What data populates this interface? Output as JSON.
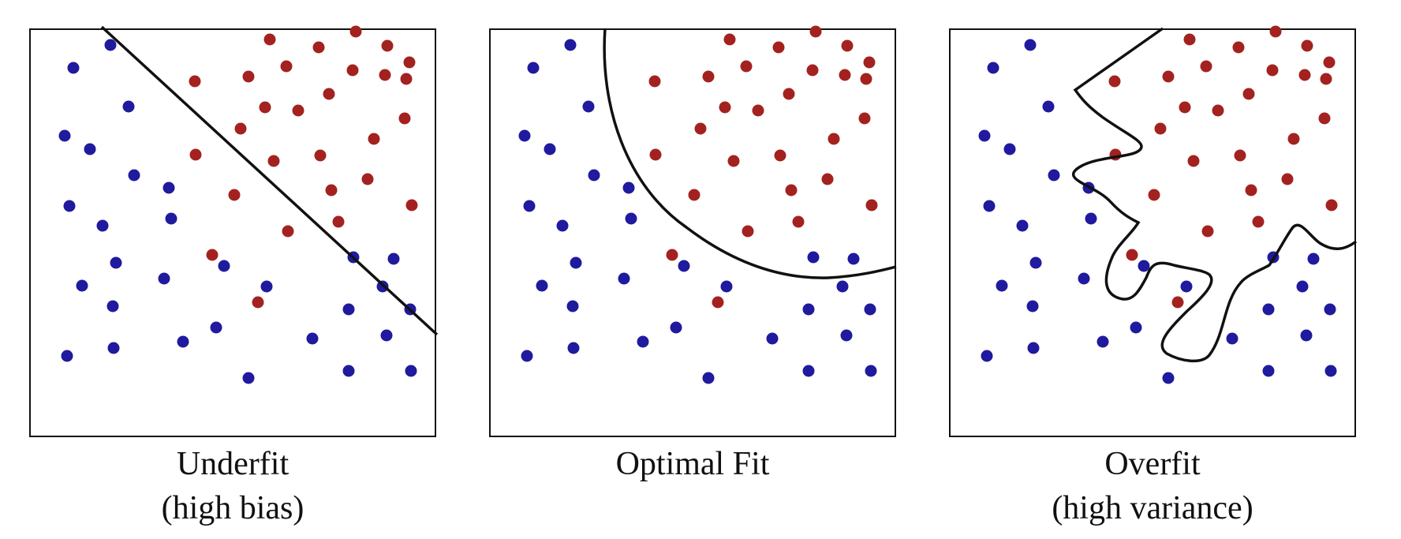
{
  "colors": {
    "class_a": "#1f1a9e",
    "class_b": "#a3221f",
    "boundary": "#111111",
    "frame": "#111111"
  },
  "panels": [
    {
      "name": "underfit",
      "caption_line1": "Underfit",
      "caption_line2": "(high bias)"
    },
    {
      "name": "optimal",
      "caption_line1": "Optimal Fit",
      "caption_line2": ""
    },
    {
      "name": "overfit",
      "caption_line1": "Overfit",
      "caption_line2": "(high variance)"
    }
  ]
}
